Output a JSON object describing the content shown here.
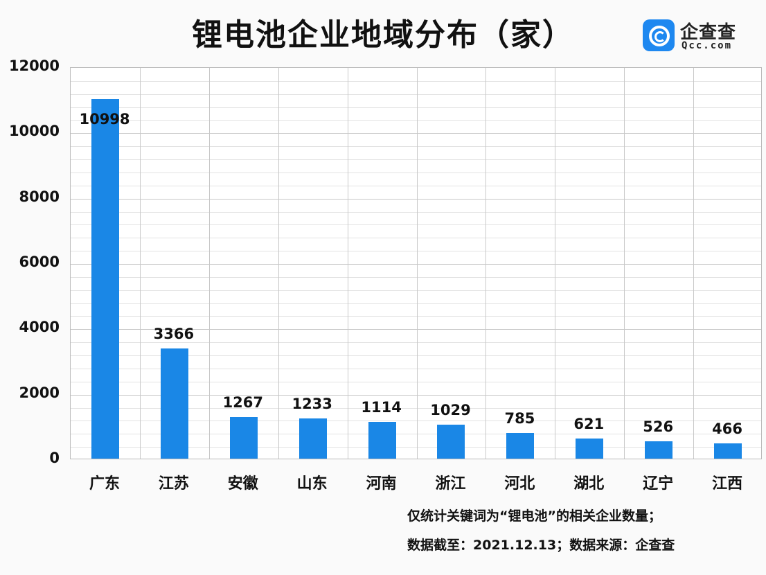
{
  "title": "锂电池企业地域分布（家）",
  "logo": {
    "name_cn": "企查查",
    "name_en": "Qcc.com",
    "color": "#1e88f0"
  },
  "notes": [
    "仅统计关键词为“锂电池”的相关企业数量；",
    "数据截至：2021.12.13；数据来源：企查查"
  ],
  "chart_data": {
    "type": "bar",
    "title": "锂电池企业地域分布（家）",
    "xlabel": "",
    "ylabel": "",
    "ylim": [
      0,
      12000
    ],
    "yticks": [
      0,
      2000,
      4000,
      6000,
      8000,
      10000,
      12000
    ],
    "categories": [
      "广东",
      "江苏",
      "安徽",
      "山东",
      "河南",
      "浙江",
      "河北",
      "湖北",
      "辽宁",
      "江西"
    ],
    "values": [
      10998,
      3366,
      1267,
      1233,
      1114,
      1029,
      785,
      621,
      526,
      466
    ],
    "bar_color": "#1a87e6",
    "grid": true,
    "legend": "none",
    "data_labels": true
  }
}
